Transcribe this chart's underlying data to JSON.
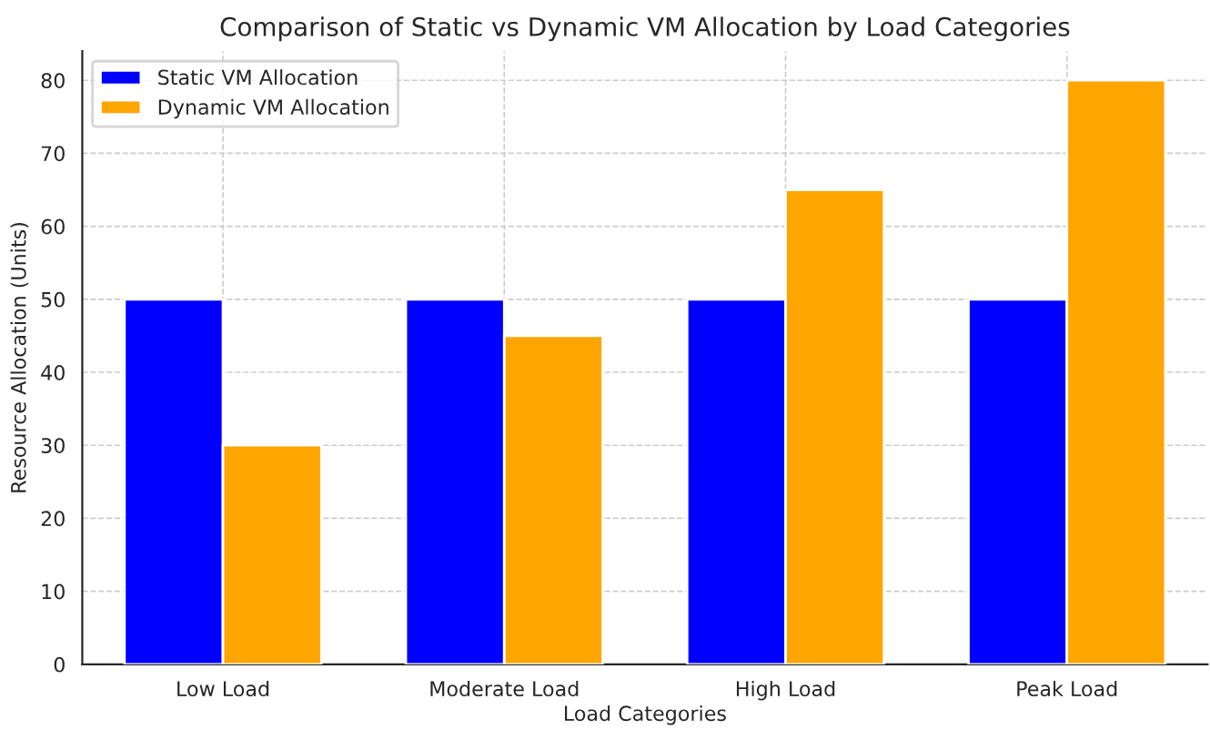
{
  "chart_data": {
    "type": "bar",
    "title": "Comparison of Static vs Dynamic VM Allocation by Load Categories",
    "xlabel": "Load Categories",
    "ylabel": "Resource Allocation (Units)",
    "categories": [
      "Low Load",
      "Moderate Load",
      "High Load",
      "Peak Load"
    ],
    "series": [
      {
        "name": "Static VM Allocation",
        "color": "#0000ff",
        "values": [
          50,
          50,
          50,
          50
        ]
      },
      {
        "name": "Dynamic VM Allocation",
        "color": "#ffa500",
        "values": [
          30,
          45,
          65,
          80
        ]
      }
    ],
    "ylim": [
      0,
      84
    ],
    "yticks": [
      0,
      10,
      20,
      30,
      40,
      50,
      60,
      70,
      80
    ],
    "grid": true,
    "legend": "top left"
  }
}
